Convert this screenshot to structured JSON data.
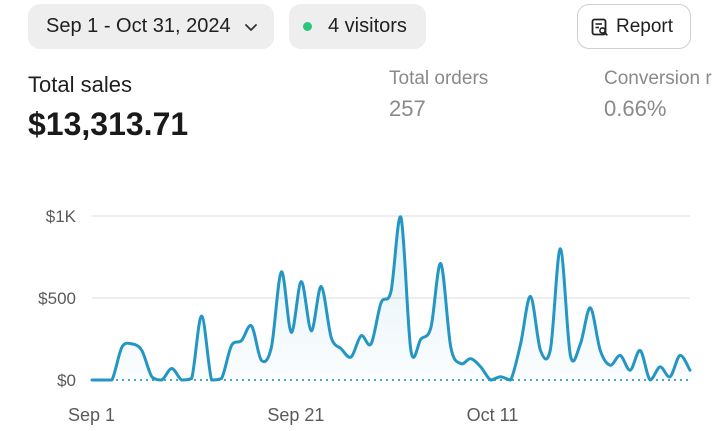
{
  "header": {
    "date_range": "Sep 1 - Oct 31, 2024",
    "visitors": "4 visitors",
    "report_label": "Report"
  },
  "metrics": {
    "total_sales_label": "Total sales",
    "total_sales_value": "$13,313.71",
    "total_orders_label": "Total orders",
    "total_orders_value": "257",
    "conversion_label": "Conversion r",
    "conversion_value": "0.66%"
  },
  "colors": {
    "line": "#2496c3",
    "visitor_dot": "#29c77a"
  },
  "chart_data": {
    "type": "line",
    "ylim": [
      0,
      1000
    ],
    "y_ticks": [
      {
        "value": 0,
        "label": "$0"
      },
      {
        "value": 500,
        "label": "$500"
      },
      {
        "value": 1000,
        "label": "$1K"
      }
    ],
    "x_ticks": [
      {
        "x": 0,
        "label": "Sep 1"
      },
      {
        "x": 20,
        "label": "Sep 21"
      },
      {
        "x": 40,
        "label": "Oct 11"
      }
    ],
    "x": [
      0,
      1,
      2,
      3,
      4,
      5,
      6,
      7,
      8,
      9,
      10,
      11,
      12,
      13,
      14,
      15,
      16,
      17,
      18,
      19,
      20,
      21,
      22,
      23,
      24,
      25,
      26,
      27,
      28,
      29,
      30,
      31,
      32,
      33,
      34,
      35,
      36,
      37,
      38,
      39,
      40,
      41,
      42,
      43,
      44,
      45,
      46,
      47,
      48,
      49,
      50,
      51,
      52,
      53,
      54,
      55,
      56,
      57,
      58,
      59,
      60
    ],
    "series": [
      {
        "values": [
          0,
          0,
          0,
          200,
          220,
          180,
          20,
          0,
          70,
          0,
          10,
          390,
          0,
          10,
          210,
          240,
          330,
          120,
          200,
          660,
          290,
          600,
          300,
          570,
          260,
          190,
          140,
          270,
          220,
          470,
          540,
          990,
          180,
          250,
          320,
          710,
          200,
          100,
          130,
          80,
          0,
          20,
          0,
          220,
          510,
          180,
          190,
          800,
          150,
          220,
          440,
          180,
          90,
          150,
          60,
          180,
          0,
          80,
          20,
          150,
          60
        ]
      }
    ]
  }
}
